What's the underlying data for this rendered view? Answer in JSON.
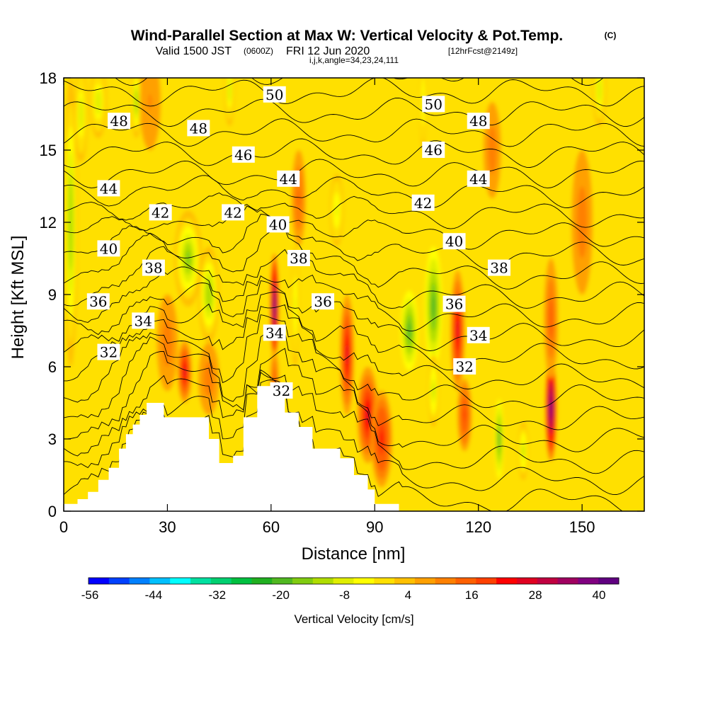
{
  "header": {
    "title": "Wind-Parallel Section at Max W: Vertical Velocity & Pot.Temp.",
    "copyright": "(C)",
    "valid_prefix": "Valid 1500 JST",
    "utc_time": "(0600Z)",
    "valid_date": "FRI 12 Jun 2020",
    "forecast": "[12hrFcst@2149z]",
    "params": "i,j,k,angle=34,23,24,111"
  },
  "chart_data": {
    "type": "heatmap",
    "xlabel": "Distance [nm]",
    "ylabel": "Height [Kft MSL]",
    "xlim": [
      0,
      168
    ],
    "ylim": [
      0,
      18
    ],
    "x_ticks": [
      "0",
      "30",
      "60",
      "90",
      "120",
      "150"
    ],
    "y_ticks": [
      "0",
      "3",
      "6",
      "9",
      "12",
      "15",
      "18"
    ],
    "colorbar": {
      "title": "Vertical Velocity [cm/s]",
      "tick_labels": [
        "-56",
        "-44",
        "-32",
        "-20",
        "-8",
        "4",
        "16",
        "28",
        "40"
      ],
      "colors": [
        "#0000ff",
        "#0040ff",
        "#0080ff",
        "#00c0ff",
        "#00ffff",
        "#00e0a0",
        "#00d070",
        "#00c040",
        "#20b020",
        "#50b820",
        "#80cc10",
        "#b0dd00",
        "#e0ee00",
        "#ffff00",
        "#ffe000",
        "#ffc000",
        "#ffa000",
        "#ff8000",
        "#ff6000",
        "#ff4000",
        "#ff0000",
        "#e00020",
        "#c00040",
        "#a00060",
        "#800080",
        "#600080"
      ]
    },
    "velocity_cells": [
      {
        "x": 2,
        "y": 12,
        "sx": 2,
        "sy": 6,
        "w": -14
      },
      {
        "x": 5,
        "y": 16.5,
        "sx": 2,
        "sy": 2,
        "w": -10
      },
      {
        "x": 10,
        "y": 17,
        "sx": 2.5,
        "sy": 1.5,
        "w": -10
      },
      {
        "x": 21,
        "y": 17,
        "sx": 1.5,
        "sy": 1.5,
        "w": -14
      },
      {
        "x": 36,
        "y": 10.5,
        "sx": 4,
        "sy": 2,
        "w": -16
      },
      {
        "x": 42,
        "y": 9,
        "sx": 3,
        "sy": 2,
        "w": -14
      },
      {
        "x": 48,
        "y": 17.5,
        "sx": 1.5,
        "sy": 1.5,
        "w": -10
      },
      {
        "x": 42,
        "y": 5.5,
        "sx": 3,
        "sy": 1.5,
        "w": 12
      },
      {
        "x": 35,
        "y": 5.8,
        "sx": 2,
        "sy": 1.3,
        "w": 26
      },
      {
        "x": 30,
        "y": 7,
        "sx": 3,
        "sy": 2,
        "w": 12
      },
      {
        "x": 61,
        "y": 8.5,
        "sx": 1.2,
        "sy": 2.2,
        "w": 42
      },
      {
        "x": 61,
        "y": 5.5,
        "sx": 1.2,
        "sy": 1.2,
        "w": 16
      },
      {
        "x": 67,
        "y": 8.5,
        "sx": 1.2,
        "sy": 2.5,
        "w": -8
      },
      {
        "x": 68,
        "y": 13,
        "sx": 2,
        "sy": 2,
        "w": 14
      },
      {
        "x": 82,
        "y": 6.5,
        "sx": 2,
        "sy": 2.5,
        "w": 28
      },
      {
        "x": 79,
        "y": 12.5,
        "sx": 2,
        "sy": 1.5,
        "w": -8
      },
      {
        "x": 88,
        "y": 4,
        "sx": 3,
        "sy": 2,
        "w": 26
      },
      {
        "x": 92,
        "y": 3,
        "sx": 3,
        "sy": 2,
        "w": 22
      },
      {
        "x": 100,
        "y": 7.5,
        "sx": 3,
        "sy": 2,
        "w": -20
      },
      {
        "x": 107,
        "y": 8,
        "sx": 1.3,
        "sy": 2,
        "w": -54
      },
      {
        "x": 107,
        "y": 8.5,
        "sx": 3,
        "sy": 3,
        "w": -22
      },
      {
        "x": 107,
        "y": 5,
        "sx": 1.5,
        "sy": 1.5,
        "w": -12
      },
      {
        "x": 104,
        "y": 17,
        "sx": 1,
        "sy": 2,
        "w": -8
      },
      {
        "x": 114,
        "y": 7.5,
        "sx": 2,
        "sy": 2.5,
        "w": 26
      },
      {
        "x": 116,
        "y": 4,
        "sx": 2,
        "sy": 1.5,
        "w": 18
      },
      {
        "x": 126,
        "y": 3,
        "sx": 1.5,
        "sy": 2,
        "w": -22
      },
      {
        "x": 133,
        "y": 2.5,
        "sx": 1.5,
        "sy": 1.2,
        "w": -12
      },
      {
        "x": 141,
        "y": 4.3,
        "sx": 1.6,
        "sy": 2.2,
        "w": 42
      },
      {
        "x": 141,
        "y": 8,
        "sx": 2,
        "sy": 2.5,
        "w": 16
      },
      {
        "x": 124,
        "y": 15,
        "sx": 2.5,
        "sy": 2,
        "w": 12
      },
      {
        "x": 150,
        "y": 12,
        "sx": 3,
        "sy": 3,
        "w": 12
      },
      {
        "x": 25,
        "y": 17,
        "sx": 3,
        "sy": 2,
        "w": 10
      },
      {
        "x": 155,
        "y": 17.5,
        "sx": 2,
        "sy": 1.5,
        "w": -10
      }
    ],
    "terrain": [
      [
        0,
        0.3
      ],
      [
        4,
        0.3
      ],
      [
        4,
        0.5
      ],
      [
        7,
        0.5
      ],
      [
        7,
        0.8
      ],
      [
        10,
        0.8
      ],
      [
        10,
        1.3
      ],
      [
        13,
        1.3
      ],
      [
        13,
        1.8
      ],
      [
        16,
        1.8
      ],
      [
        16,
        2.6
      ],
      [
        18,
        2.6
      ],
      [
        18,
        3.2
      ],
      [
        20,
        3.2
      ],
      [
        20,
        3.6
      ],
      [
        22,
        3.6
      ],
      [
        22,
        4.0
      ],
      [
        24,
        4.0
      ],
      [
        24,
        4.5
      ],
      [
        29,
        4.5
      ],
      [
        29,
        3.9
      ],
      [
        42,
        3.9
      ],
      [
        42,
        3.0
      ],
      [
        45,
        3.0
      ],
      [
        45,
        2.0
      ],
      [
        49,
        2.0
      ],
      [
        49,
        2.3
      ],
      [
        52,
        2.3
      ],
      [
        52,
        3.9
      ],
      [
        56,
        3.9
      ],
      [
        56,
        5.2
      ],
      [
        64,
        5.2
      ],
      [
        64,
        4.1
      ],
      [
        68,
        4.1
      ],
      [
        68,
        3.5
      ],
      [
        72,
        3.5
      ],
      [
        72,
        2.6
      ],
      [
        80,
        2.6
      ],
      [
        80,
        2.2
      ],
      [
        84,
        2.2
      ],
      [
        84,
        1.5
      ],
      [
        88,
        1.5
      ],
      [
        88,
        0.9
      ],
      [
        90,
        0.9
      ],
      [
        90,
        0.3
      ],
      [
        97,
        0.3
      ]
    ],
    "contour_levels": [
      31,
      32,
      33,
      34,
      35,
      36,
      37,
      38,
      39,
      40,
      41,
      42,
      43,
      44,
      45,
      46,
      47,
      48,
      49,
      50,
      51,
      52
    ],
    "contour_labels": [
      {
        "text": "50",
        "x": 61,
        "y": 17.3
      },
      {
        "text": "48",
        "x": 16,
        "y": 16.2
      },
      {
        "text": "48",
        "x": 39,
        "y": 15.9
      },
      {
        "text": "46",
        "x": 52,
        "y": 14.8
      },
      {
        "text": "44",
        "x": 13,
        "y": 13.4
      },
      {
        "text": "44",
        "x": 65,
        "y": 13.8
      },
      {
        "text": "42",
        "x": 28,
        "y": 12.4
      },
      {
        "text": "42",
        "x": 49,
        "y": 12.4
      },
      {
        "text": "40",
        "x": 13,
        "y": 10.9
      },
      {
        "text": "40",
        "x": 62,
        "y": 11.9
      },
      {
        "text": "38",
        "x": 26,
        "y": 10.1
      },
      {
        "text": "38",
        "x": 68,
        "y": 10.5
      },
      {
        "text": "36",
        "x": 10,
        "y": 8.7
      },
      {
        "text": "36",
        "x": 75,
        "y": 8.7
      },
      {
        "text": "34",
        "x": 23,
        "y": 7.9
      },
      {
        "text": "34",
        "x": 61,
        "y": 7.4
      },
      {
        "text": "32",
        "x": 13,
        "y": 6.6
      },
      {
        "text": "32",
        "x": 63,
        "y": 5.0
      },
      {
        "text": "50",
        "x": 107,
        "y": 16.9
      },
      {
        "text": "48",
        "x": 120,
        "y": 16.2
      },
      {
        "text": "46",
        "x": 107,
        "y": 15.0
      },
      {
        "text": "44",
        "x": 120,
        "y": 13.8
      },
      {
        "text": "42",
        "x": 104,
        "y": 12.8
      },
      {
        "text": "40",
        "x": 113,
        "y": 11.2
      },
      {
        "text": "38",
        "x": 126,
        "y": 10.1
      },
      {
        "text": "36",
        "x": 113,
        "y": 8.6
      },
      {
        "text": "34",
        "x": 120,
        "y": 7.3
      },
      {
        "text": "32",
        "x": 116,
        "y": 6.0
      }
    ]
  }
}
